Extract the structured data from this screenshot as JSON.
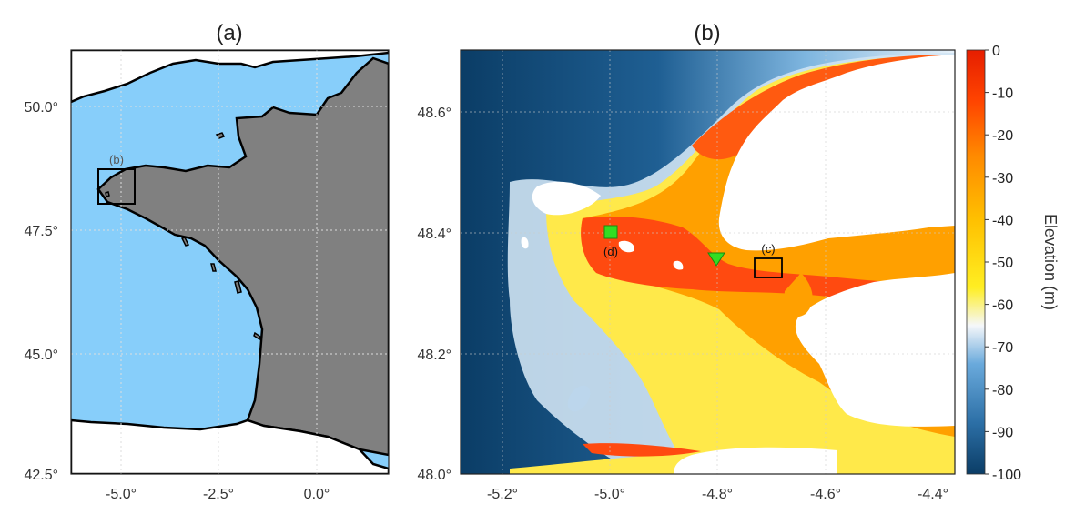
{
  "panel_a": {
    "title": "(a)",
    "y_ticks": [
      "50.0°",
      "47.5°",
      "45.0°",
      "42.5°"
    ],
    "x_ticks": [
      "-5.0°",
      "-2.5°",
      "0.0°"
    ],
    "inset_label": "(b)",
    "colors": {
      "sea": "#87cefa",
      "land": "#808080",
      "unmapped": "#ffffff"
    }
  },
  "panel_b": {
    "title": "(b)",
    "y_ticks": [
      "48.6°",
      "48.4°",
      "48.2°",
      "48.0°"
    ],
    "x_ticks": [
      "-5.2°",
      "-5.0°",
      "-4.8°",
      "-4.6°",
      "-4.4°"
    ],
    "marker_c_label": "(c)",
    "marker_d_label": "(d)",
    "marker_color": "#33dd22"
  },
  "colorbar": {
    "title": "Elevation (m)",
    "ticks": [
      "0",
      "-10",
      "-20",
      "-30",
      "-40",
      "-50",
      "-60",
      "-70",
      "-80",
      "-90",
      "-100"
    ],
    "range": [
      -100,
      0
    ],
    "stops": [
      "#0b3d66",
      "#2c6fa6",
      "#6aaadc",
      "#f5f7fa",
      "#ffee22",
      "#ffc000",
      "#ff8a00",
      "#ff4400",
      "#e61e00"
    ]
  }
}
